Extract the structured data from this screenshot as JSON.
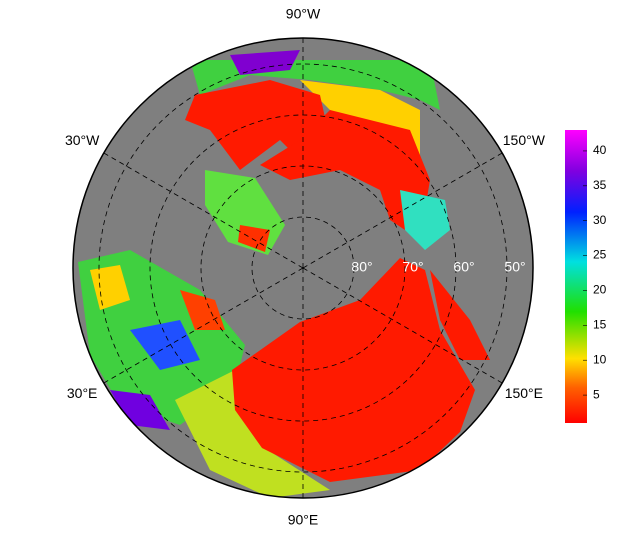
{
  "map": {
    "longitude_labels": [
      {
        "value": -90,
        "label": "90°W"
      },
      {
        "value": -30,
        "label": "30°W"
      },
      {
        "value": -150,
        "label": "150°W"
      },
      {
        "value": 30,
        "label": "30°E"
      },
      {
        "value": 150,
        "label": "150°E"
      },
      {
        "value": 90,
        "label": "90°E"
      }
    ],
    "latitude_labels": [
      {
        "value": 80,
        "label": "80°"
      },
      {
        "value": 70,
        "label": "70°"
      },
      {
        "value": 60,
        "label": "60°"
      },
      {
        "value": 50,
        "label": "50°"
      }
    ]
  },
  "colorbar": {
    "lim": [
      1,
      43
    ],
    "ticks": [
      5,
      10,
      15,
      20,
      25,
      30,
      35,
      40
    ]
  }
}
